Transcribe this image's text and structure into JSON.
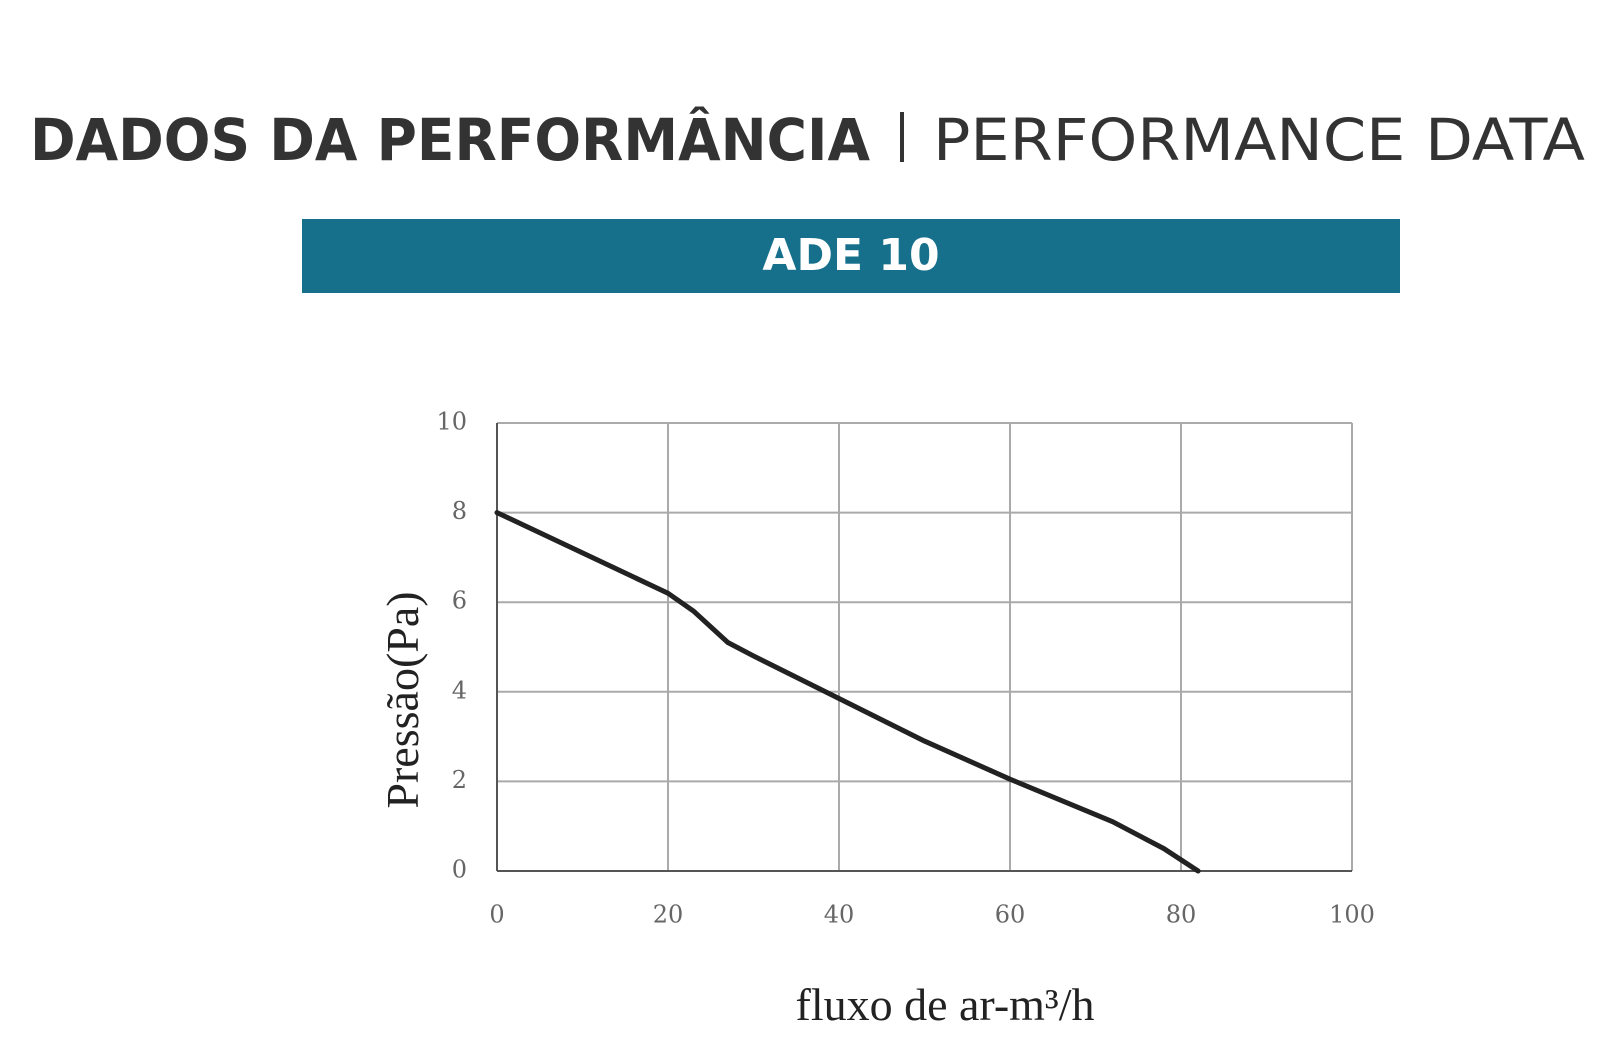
{
  "header": {
    "title_pt": "DADOS DA PERFORMÂNCIA",
    "title_en": "PERFORMANCE DATA"
  },
  "banner": "ADE 10",
  "chart_data": {
    "type": "line",
    "x_label": "fluxo de ar-m³/h",
    "y_label": "Pressão(Pa)",
    "x": [
      0,
      10,
      20,
      23,
      27,
      30,
      40,
      50,
      60,
      72,
      78,
      82
    ],
    "values": [
      8,
      7.1,
      6.2,
      5.8,
      5.1,
      4.8,
      3.85,
      2.9,
      2.05,
      1.1,
      0.5,
      0
    ],
    "color": "#222222",
    "xlim": [
      0,
      100
    ],
    "xticks": [
      0,
      20,
      40,
      60,
      80,
      100
    ],
    "ylim": [
      0,
      10
    ],
    "yticks": [
      0,
      2,
      4,
      6,
      8,
      10
    ],
    "grid": true
  }
}
